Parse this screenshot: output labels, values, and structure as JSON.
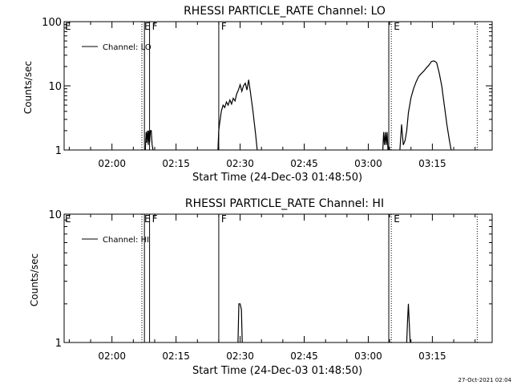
{
  "footer": {
    "timestamp": "27-Oct-2021 02:04"
  },
  "colors": {
    "line": "#000000",
    "background": "#ffffff"
  },
  "chart_data": [
    {
      "type": "line",
      "title": "RHESSI PARTICLE_RATE Channel: LO",
      "xlabel": "Start Time (24-Dec-03 01:48:50)",
      "ylabel": "Counts/sec",
      "yscale": "log",
      "ylim": [
        1,
        100
      ],
      "xlim_minutes": [
        108.8,
        209.0
      ],
      "yticks": [
        {
          "v": 1,
          "label": "1"
        },
        {
          "v": 10,
          "label": "10"
        },
        {
          "v": 100,
          "label": "100"
        }
      ],
      "xticks": [
        {
          "v": 120,
          "label": "02:00"
        },
        {
          "v": 135,
          "label": "02:15"
        },
        {
          "v": 150,
          "label": "02:30"
        },
        {
          "v": 165,
          "label": "02:45"
        },
        {
          "v": 180,
          "label": "03:00"
        },
        {
          "v": 195,
          "label": "03:15"
        }
      ],
      "legend": {
        "label": "Channel: LO",
        "position": "top-left"
      },
      "grid": false,
      "markers": [
        {
          "v": 127.0,
          "style": "dotted",
          "label": "E"
        },
        {
          "v": 127.6,
          "style": "solid",
          "label": ""
        },
        {
          "v": 128.8,
          "style": "solid",
          "label": "F"
        },
        {
          "v": 145.0,
          "style": "solid",
          "label": "F"
        },
        {
          "v": 184.8,
          "style": "solid",
          "label": ""
        },
        {
          "v": 185.4,
          "style": "dotted",
          "label": "E"
        },
        {
          "v": 205.5,
          "style": "dotted",
          "label": ""
        }
      ],
      "edge_labels": [
        {
          "label": "E",
          "at": "left"
        }
      ],
      "series": [
        {
          "x": [
            127.8,
            128.0,
            128.1,
            128.3,
            128.5,
            128.6,
            128.8,
            129.0,
            129.2,
            129.4,
            129.6
          ],
          "y": [
            1,
            1.9,
            1.3,
            2.0,
            1.2,
            2.0,
            1.3,
            2.0,
            2.0,
            1.2,
            1
          ],
          "line_style": "solid"
        },
        {
          "x": [
            144.8,
            145.0,
            145.2,
            145.6,
            146.0,
            146.4,
            146.8,
            147.2,
            147.6,
            148.0,
            148.4,
            148.8,
            149.2,
            149.6,
            150.0,
            150.4,
            150.8,
            151.2,
            151.6,
            152.0,
            152.4,
            153.0,
            153.6,
            154.0
          ],
          "y": [
            1,
            2.0,
            2.6,
            4.0,
            5.0,
            4.6,
            5.6,
            5.0,
            6.0,
            5.2,
            6.4,
            5.8,
            7.5,
            8.6,
            10.4,
            8.2,
            10.0,
            11.0,
            8.6,
            12.4,
            8.0,
            4.0,
            1.8,
            1
          ],
          "line_style": "solid"
        },
        {
          "x": [
            183.4,
            183.6,
            183.8,
            184.0,
            184.2,
            184.4,
            184.6
          ],
          "y": [
            1,
            1.9,
            1.2,
            1.9,
            1.2,
            1.9,
            1
          ],
          "line_style": "solid"
        },
        {
          "x": [
            187.4,
            187.8,
            188.2,
            188.6,
            189.0,
            189.4,
            190.0,
            190.6,
            191.2,
            191.8,
            192.4,
            193.0,
            193.6,
            194.2,
            194.8,
            195.4,
            196.0,
            196.6,
            197.2,
            197.8,
            198.4,
            199.0,
            199.4
          ],
          "y": [
            1,
            2.5,
            1.2,
            1.4,
            2.0,
            3.8,
            6.5,
            9.0,
            11.5,
            14.0,
            15.5,
            17.0,
            19.0,
            21.0,
            24.0,
            24.5,
            23.0,
            16.0,
            10.0,
            5.0,
            2.5,
            1.4,
            1
          ],
          "line_style": "solid"
        }
      ]
    },
    {
      "type": "line",
      "title": "RHESSI PARTICLE_RATE Channel: HI",
      "xlabel": "Start Time (24-Dec-03 01:48:50)",
      "ylabel": "Counts/sec",
      "yscale": "log",
      "ylim": [
        1,
        10
      ],
      "xlim_minutes": [
        108.8,
        209.0
      ],
      "yticks": [
        {
          "v": 1,
          "label": "1"
        },
        {
          "v": 10,
          "label": "10"
        }
      ],
      "xticks": [
        {
          "v": 120,
          "label": "02:00"
        },
        {
          "v": 135,
          "label": "02:15"
        },
        {
          "v": 150,
          "label": "02:30"
        },
        {
          "v": 165,
          "label": "02:45"
        },
        {
          "v": 180,
          "label": "03:00"
        },
        {
          "v": 195,
          "label": "03:15"
        }
      ],
      "legend": {
        "label": "Channel: HI",
        "position": "top-left"
      },
      "grid": false,
      "markers": [
        {
          "v": 127.0,
          "style": "dotted",
          "label": "E"
        },
        {
          "v": 127.6,
          "style": "solid",
          "label": ""
        },
        {
          "v": 128.8,
          "style": "solid",
          "label": "F"
        },
        {
          "v": 145.0,
          "style": "solid",
          "label": "F"
        },
        {
          "v": 184.8,
          "style": "solid",
          "label": ""
        },
        {
          "v": 185.4,
          "style": "dotted",
          "label": "E"
        },
        {
          "v": 205.5,
          "style": "dotted",
          "label": ""
        }
      ],
      "edge_labels": [
        {
          "label": "E",
          "at": "left"
        }
      ],
      "series": [
        {
          "x": [
            149.5,
            149.7,
            150.0,
            150.3,
            150.5
          ],
          "y": [
            1,
            2.0,
            2.0,
            1.8,
            1
          ],
          "line_style": "solid"
        },
        {
          "x": [
            189.0,
            189.2,
            189.4,
            189.6,
            189.8
          ],
          "y": [
            1,
            1.5,
            2.0,
            1.4,
            1
          ],
          "line_style": "solid"
        }
      ]
    }
  ]
}
